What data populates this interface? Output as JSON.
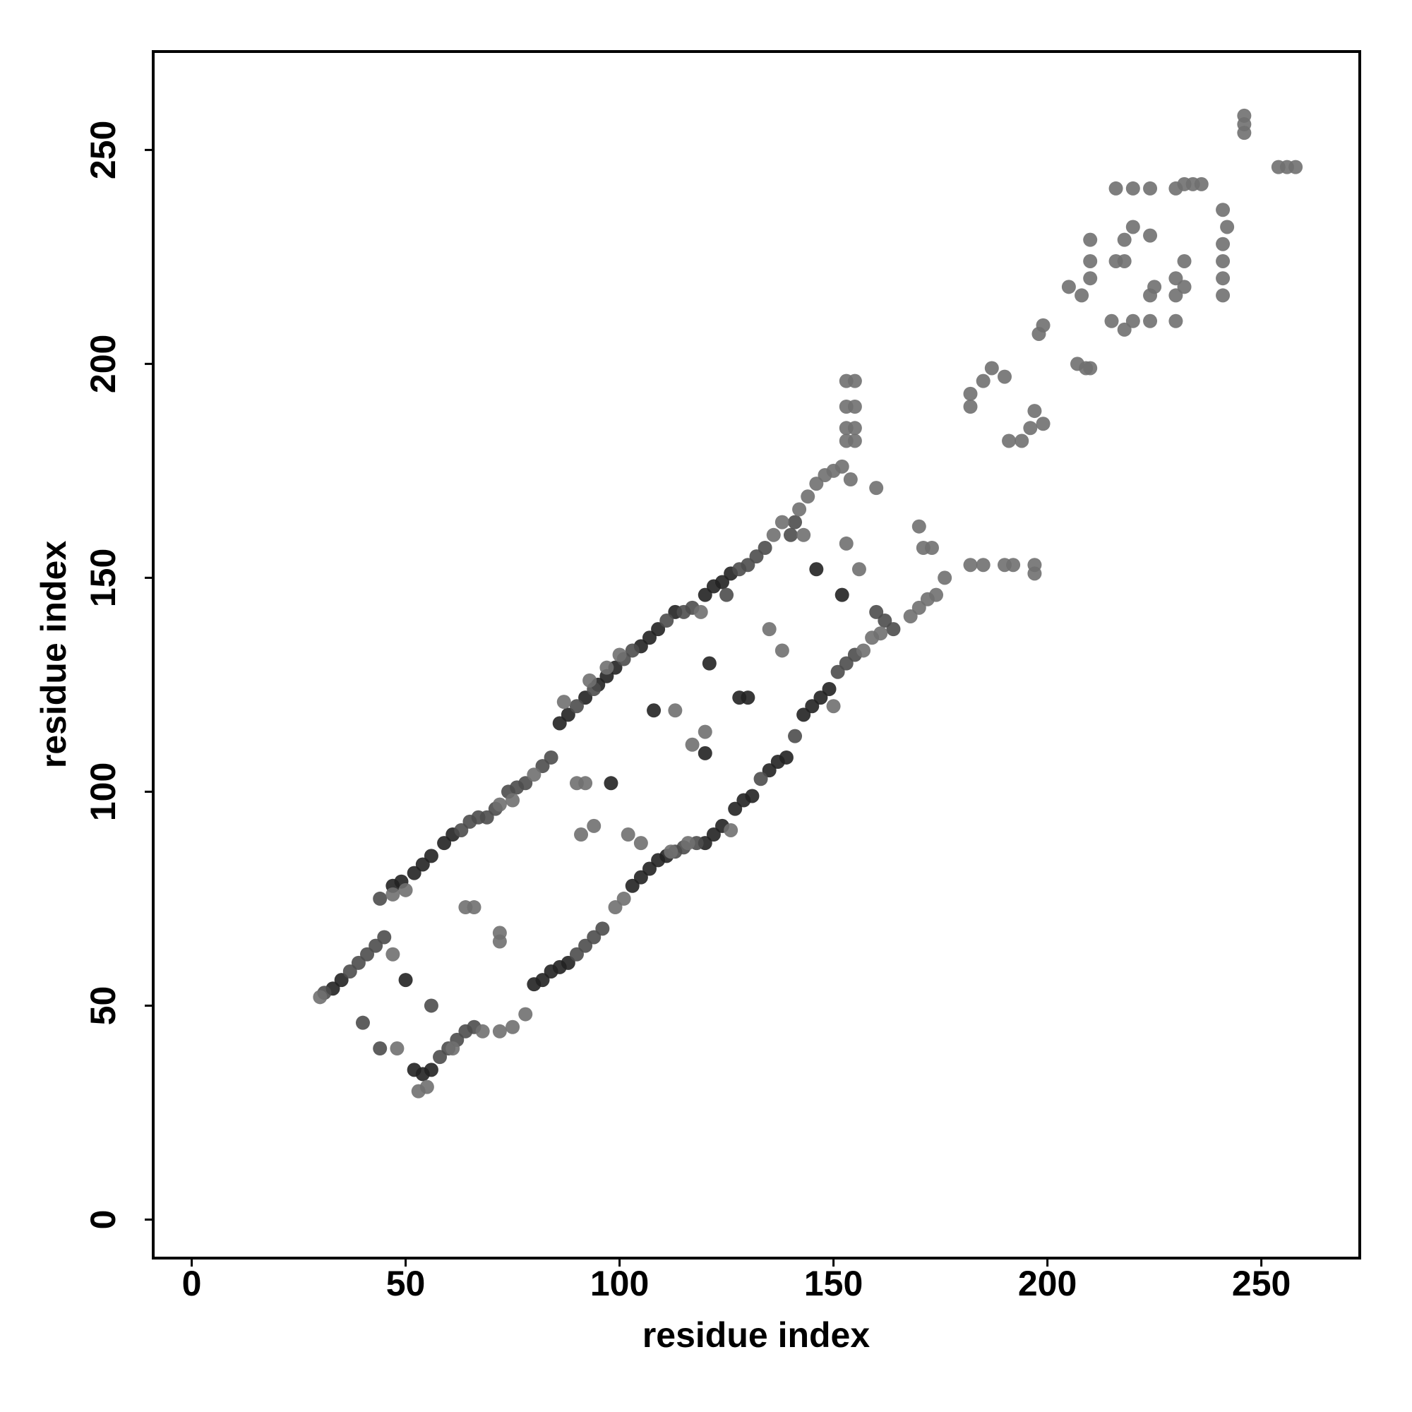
{
  "chart_data": {
    "type": "scatter",
    "x_label": "residue index",
    "y_label": "residue index",
    "xlim": [
      -9,
      273
    ],
    "ylim": [
      -9,
      273
    ],
    "xticks": [
      0,
      50,
      100,
      150,
      200,
      250
    ],
    "yticks": [
      0,
      50,
      100,
      150,
      200,
      250
    ],
    "series": [
      {
        "color": "#222222",
        "x": [
          33,
          35,
          47,
          49,
          52,
          54,
          56,
          59,
          61,
          86,
          88,
          92,
          95,
          97,
          99,
          105,
          107,
          109,
          113,
          120,
          122,
          124,
          126,
          52,
          54,
          56,
          80,
          82,
          84,
          86,
          88,
          103,
          105,
          107,
          109,
          111,
          120,
          122,
          124,
          127,
          129,
          131,
          135,
          137,
          139,
          143,
          145,
          147,
          149,
          50,
          98,
          121,
          128,
          130,
          146,
          152,
          108,
          120
        ],
        "values": [
          54,
          56,
          78,
          79,
          81,
          83,
          85,
          88,
          90,
          116,
          118,
          122,
          125,
          127,
          129,
          134,
          136,
          138,
          142,
          146,
          148,
          149,
          151,
          35,
          34,
          35,
          55,
          56,
          58,
          59,
          60,
          78,
          80,
          82,
          84,
          85,
          88,
          90,
          92,
          96,
          98,
          99,
          105,
          107,
          108,
          118,
          120,
          122,
          124,
          56,
          102,
          130,
          122,
          122,
          152,
          146,
          119,
          109
        ]
      },
      {
        "color": "#4d4d4d",
        "x": [
          31,
          37,
          39,
          41,
          43,
          45,
          63,
          65,
          67,
          69,
          71,
          74,
          76,
          78,
          82,
          84,
          90,
          94,
          101,
          103,
          111,
          115,
          117,
          128,
          130,
          132,
          134,
          58,
          60,
          62,
          64,
          66,
          90,
          92,
          94,
          96,
          113,
          115,
          118,
          133,
          141,
          151,
          153,
          155,
          160,
          162,
          164,
          44,
          44,
          56,
          40,
          125,
          140,
          141
        ],
        "values": [
          53,
          58,
          60,
          62,
          64,
          66,
          91,
          93,
          94,
          94,
          96,
          100,
          101,
          102,
          106,
          108,
          120,
          124,
          131,
          133,
          140,
          142,
          143,
          152,
          153,
          155,
          157,
          38,
          40,
          42,
          44,
          45,
          62,
          64,
          66,
          68,
          86,
          87,
          88,
          103,
          113,
          128,
          130,
          132,
          142,
          140,
          138,
          75,
          40,
          50,
          46,
          146,
          160,
          163
        ]
      },
      {
        "color": "#707070",
        "x": [
          30,
          47,
          50,
          72,
          75,
          80,
          87,
          93,
          97,
          100,
          119,
          136,
          138,
          142,
          144,
          146,
          148,
          150,
          152,
          53,
          55,
          61,
          68,
          72,
          75,
          78,
          99,
          101,
          112,
          116,
          126,
          150,
          157,
          159,
          161,
          168,
          170,
          172,
          174,
          176,
          64,
          66,
          72,
          72,
          47,
          48,
          90,
          92,
          91,
          94,
          102,
          105,
          113,
          117,
          120,
          135,
          138,
          153,
          156,
          154,
          160,
          170,
          171,
          173,
          143,
          153,
          155,
          153,
          155,
          153,
          155,
          153,
          155,
          182,
          185,
          190,
          192,
          197,
          197,
          182,
          182,
          185,
          187,
          190,
          191,
          194,
          196,
          197,
          199,
          198,
          199,
          207,
          209,
          210,
          205,
          208,
          210,
          210,
          210,
          216,
          218,
          215,
          218,
          220,
          224,
          218,
          220,
          224,
          224,
          225,
          230,
          230,
          230,
          232,
          232,
          230,
          232,
          234,
          236,
          216,
          220,
          224,
          241,
          242,
          241,
          241,
          241,
          241,
          246,
          246,
          246,
          254,
          256,
          258
        ],
        "values": [
          52,
          76,
          77,
          97,
          98,
          104,
          121,
          126,
          129,
          132,
          142,
          160,
          163,
          166,
          169,
          172,
          174,
          175,
          176,
          30,
          31,
          40,
          44,
          44,
          45,
          48,
          73,
          75,
          86,
          88,
          91,
          120,
          133,
          136,
          137,
          141,
          143,
          145,
          146,
          150,
          73,
          73,
          67,
          65,
          62,
          40,
          102,
          102,
          90,
          92,
          90,
          88,
          119,
          111,
          114,
          138,
          133,
          158,
          152,
          173,
          171,
          162,
          157,
          157,
          160,
          196,
          196,
          190,
          190,
          185,
          185,
          182,
          182,
          153,
          153,
          153,
          153,
          153,
          151,
          190,
          193,
          196,
          199,
          197,
          182,
          182,
          185,
          189,
          186,
          207,
          209,
          200,
          199,
          199,
          218,
          216,
          220,
          224,
          229,
          224,
          224,
          210,
          208,
          210,
          210,
          229,
          232,
          230,
          216,
          218,
          210,
          216,
          220,
          224,
          218,
          241,
          242,
          242,
          242,
          241,
          241,
          241,
          236,
          232,
          228,
          224,
          220,
          216,
          254,
          256,
          258,
          246,
          246,
          246
        ]
      }
    ]
  }
}
